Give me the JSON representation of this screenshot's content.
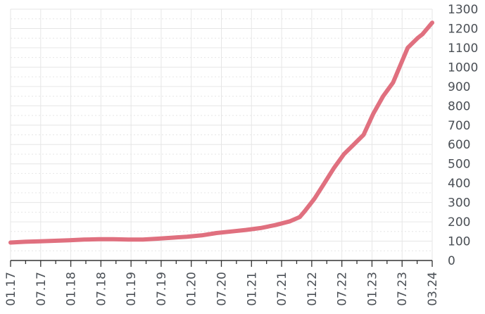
{
  "chart_data": {
    "type": "line",
    "title": "",
    "xlabel": "",
    "ylabel": "",
    "x_tick_labels": [
      "01.17",
      "07.17",
      "01.18",
      "07.18",
      "01.19",
      "07.19",
      "01.20",
      "07.20",
      "01.21",
      "07.21",
      "01.22",
      "07.22",
      "01.23",
      "07.23",
      "03.24"
    ],
    "y_tick_labels": [
      "0",
      "100",
      "200",
      "300",
      "400",
      "500",
      "600",
      "700",
      "800",
      "900",
      "1000",
      "1100",
      "1200",
      "1300"
    ],
    "ylim": [
      0,
      1300
    ],
    "y_axis_position": "right",
    "grid": true,
    "legend": "none",
    "colors": {
      "line": "#e0707f",
      "grid": "#e6e6e6",
      "axis": "#333333",
      "text": "#4a4f55"
    },
    "series": [
      {
        "x": [
          "2017-01",
          "2017-04",
          "2017-07",
          "2017-10",
          "2018-01",
          "2018-04",
          "2018-07",
          "2018-10",
          "2019-01",
          "2019-04",
          "2019-07",
          "2019-10",
          "2020-01",
          "2020-04",
          "2020-07",
          "2020-10",
          "2021-01",
          "2021-04",
          "2021-07",
          "2021-10",
          "2021-12",
          "2022-01",
          "2022-03",
          "2022-05",
          "2022-07",
          "2022-09",
          "2022-11",
          "2023-01",
          "2023-03",
          "2023-05",
          "2023-07",
          "2023-09",
          "2023-10",
          "2023-12",
          "2024-01",
          "2024-02",
          "2024-03"
        ],
        "values": [
          93,
          97,
          99,
          102,
          105,
          108,
          110,
          110,
          108,
          108,
          113,
          118,
          123,
          130,
          142,
          150,
          158,
          168,
          183,
          203,
          225,
          255,
          320,
          400,
          480,
          550,
          600,
          650,
          760,
          850,
          920,
          1040,
          1100,
          1150,
          1170,
          1200,
          1230
        ]
      }
    ]
  }
}
